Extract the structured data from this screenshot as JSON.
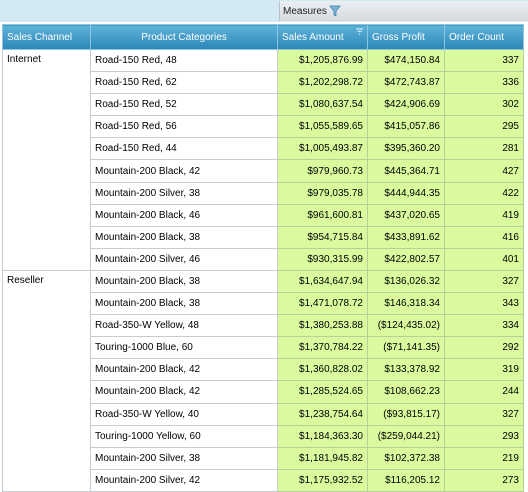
{
  "toolbar": {
    "measures_label": "Measures",
    "filter_icon": "funnel-icon"
  },
  "columns": {
    "sales_channel": "Sales Channel",
    "product_categories": "Product Categories",
    "sales_amount": "Sales Amount",
    "gross_profit": "Gross Profit",
    "order_count": "Order Count"
  },
  "colors": {
    "header": "#2b86b7",
    "measure_cell": "#d9fb9e",
    "top_strip": "#d4eaf3"
  },
  "groups": [
    {
      "channel": "Internet",
      "rows": [
        {
          "product": "Road-150 Red, 48",
          "sales": "$1,205,876.99",
          "profit": "$474,150.84",
          "orders": "337"
        },
        {
          "product": "Road-150 Red, 62",
          "sales": "$1,202,298.72",
          "profit": "$472,743.87",
          "orders": "336"
        },
        {
          "product": "Road-150 Red, 52",
          "sales": "$1,080,637.54",
          "profit": "$424,906.69",
          "orders": "302"
        },
        {
          "product": "Road-150 Red, 56",
          "sales": "$1,055,589.65",
          "profit": "$415,057.86",
          "orders": "295"
        },
        {
          "product": "Road-150 Red, 44",
          "sales": "$1,005,493.87",
          "profit": "$395,360.20",
          "orders": "281"
        },
        {
          "product": "Mountain-200 Black, 42",
          "sales": "$979,960.73",
          "profit": "$445,364.71",
          "orders": "427"
        },
        {
          "product": "Mountain-200 Silver, 38",
          "sales": "$979,035.78",
          "profit": "$444,944.35",
          "orders": "422"
        },
        {
          "product": "Mountain-200 Black, 46",
          "sales": "$961,600.81",
          "profit": "$437,020.65",
          "orders": "419"
        },
        {
          "product": "Mountain-200 Black, 38",
          "sales": "$954,715.84",
          "profit": "$433,891.62",
          "orders": "416"
        },
        {
          "product": "Mountain-200 Silver, 46",
          "sales": "$930,315.99",
          "profit": "$422,802.57",
          "orders": "401"
        }
      ]
    },
    {
      "channel": "Reseller",
      "rows": [
        {
          "product": "Mountain-200 Black, 38",
          "sales": "$1,634,647.94",
          "profit": "$136,026.32",
          "orders": "327"
        },
        {
          "product": "Mountain-200 Black, 38",
          "sales": "$1,471,078.72",
          "profit": "$146,318.34",
          "orders": "343"
        },
        {
          "product": "Road-350-W Yellow, 48",
          "sales": "$1,380,253.88",
          "profit": "($124,435.02)",
          "orders": "334"
        },
        {
          "product": "Touring-1000 Blue, 60",
          "sales": "$1,370,784.22",
          "profit": "($71,141.35)",
          "orders": "292"
        },
        {
          "product": "Mountain-200 Black, 42",
          "sales": "$1,360,828.02",
          "profit": "$133,378.92",
          "orders": "319"
        },
        {
          "product": "Mountain-200 Black, 42",
          "sales": "$1,285,524.65",
          "profit": "$108,662.23",
          "orders": "244"
        },
        {
          "product": "Road-350-W Yellow, 40",
          "sales": "$1,238,754.64",
          "profit": "($93,815.17)",
          "orders": "327"
        },
        {
          "product": "Touring-1000 Yellow, 60",
          "sales": "$1,184,363.30",
          "profit": "($259,044.21)",
          "orders": "293"
        },
        {
          "product": "Mountain-200 Silver, 38",
          "sales": "$1,181,945.82",
          "profit": "$102,372.38",
          "orders": "219"
        },
        {
          "product": "Mountain-200 Silver, 42",
          "sales": "$1,175,932.52",
          "profit": "$116,205.12",
          "orders": "273"
        }
      ]
    }
  ]
}
